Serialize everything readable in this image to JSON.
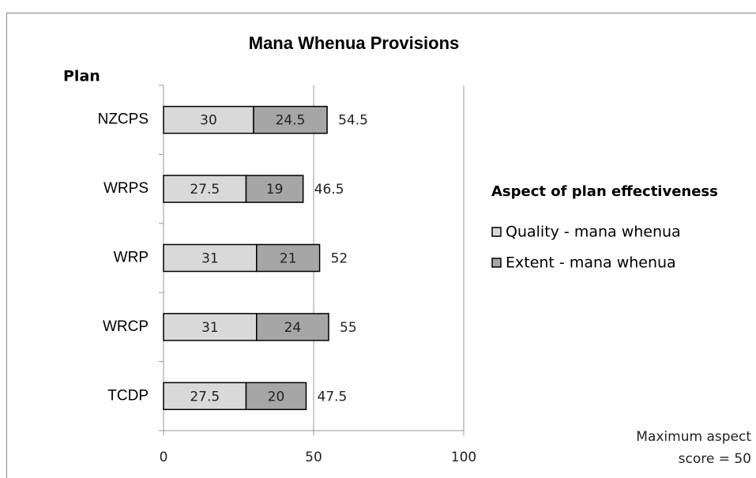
{
  "chart_data": {
    "type": "stacked_barh",
    "title": "Mana Whenua Provisions",
    "y_label": "Plan",
    "categories": [
      "NZCPS",
      "WRPS",
      "WRP",
      "WRCP",
      "TCDP"
    ],
    "series": [
      {
        "name": "Quality - mana whenua",
        "color": "#d9d9d9",
        "values": [
          30,
          27.5,
          31,
          31,
          27.5
        ]
      },
      {
        "name": "Extent - mana whenua",
        "color": "#a6a6a6",
        "values": [
          24.5,
          19,
          21,
          24,
          20
        ]
      }
    ],
    "totals": [
      54.5,
      46.5,
      52,
      55,
      47.5
    ],
    "legend_title": "Aspect of plan effectiveness",
    "legend_position": "right",
    "annotation": [
      "Maximum aspect",
      "score = 50"
    ],
    "xlim": [
      0,
      100
    ],
    "xticks": [
      0,
      50,
      100
    ],
    "grid": true
  }
}
